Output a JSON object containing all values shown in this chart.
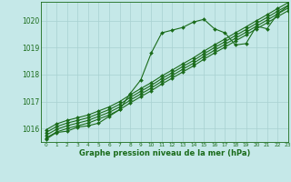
{
  "background_color": "#c5e8e8",
  "line_color": "#1a6b1a",
  "grid_color": "#a8d0d0",
  "text_color": "#1a6b1a",
  "xlabel": "Graphe pression niveau de la mer (hPa)",
  "ylim": [
    1015.5,
    1020.7
  ],
  "xlim": [
    -0.5,
    23
  ],
  "yticks": [
    1016,
    1017,
    1018,
    1019,
    1020
  ],
  "xticks": [
    0,
    1,
    2,
    3,
    4,
    5,
    6,
    7,
    8,
    9,
    10,
    11,
    12,
    13,
    14,
    15,
    16,
    17,
    18,
    19,
    20,
    21,
    22,
    23
  ],
  "series_main": [
    1015.6,
    1015.85,
    1015.9,
    1016.05,
    1016.1,
    1016.2,
    1016.45,
    1016.7,
    1017.3,
    1017.8,
    1018.8,
    1019.55,
    1019.65,
    1019.75,
    1019.95,
    1020.05,
    1019.7,
    1019.55,
    1019.1,
    1019.15,
    1019.8,
    1019.7,
    1020.25,
    1020.55
  ],
  "series_linear": [
    [
      1015.65,
      1015.87,
      1016.0,
      1016.1,
      1016.2,
      1016.35,
      1016.5,
      1016.7,
      1016.95,
      1017.18,
      1017.4,
      1017.65,
      1017.87,
      1018.1,
      1018.32,
      1018.57,
      1018.8,
      1019.02,
      1019.25,
      1019.47,
      1019.7,
      1019.92,
      1020.15,
      1020.37
    ],
    [
      1015.75,
      1015.97,
      1016.1,
      1016.2,
      1016.3,
      1016.45,
      1016.6,
      1016.8,
      1017.05,
      1017.28,
      1017.5,
      1017.75,
      1017.97,
      1018.2,
      1018.42,
      1018.67,
      1018.9,
      1019.12,
      1019.35,
      1019.57,
      1019.8,
      1020.02,
      1020.25,
      1020.47
    ],
    [
      1015.85,
      1016.07,
      1016.2,
      1016.3,
      1016.4,
      1016.55,
      1016.7,
      1016.9,
      1017.15,
      1017.38,
      1017.6,
      1017.85,
      1018.07,
      1018.3,
      1018.52,
      1018.77,
      1019.0,
      1019.22,
      1019.45,
      1019.67,
      1019.9,
      1020.12,
      1020.35,
      1020.57
    ],
    [
      1015.95,
      1016.17,
      1016.3,
      1016.4,
      1016.5,
      1016.65,
      1016.8,
      1017.0,
      1017.25,
      1017.48,
      1017.7,
      1017.95,
      1018.17,
      1018.4,
      1018.62,
      1018.87,
      1019.1,
      1019.32,
      1019.55,
      1019.77,
      1020.0,
      1020.22,
      1020.45,
      1020.67
    ]
  ],
  "marker": "D",
  "markersize": 2.0,
  "linewidth": 0.8
}
